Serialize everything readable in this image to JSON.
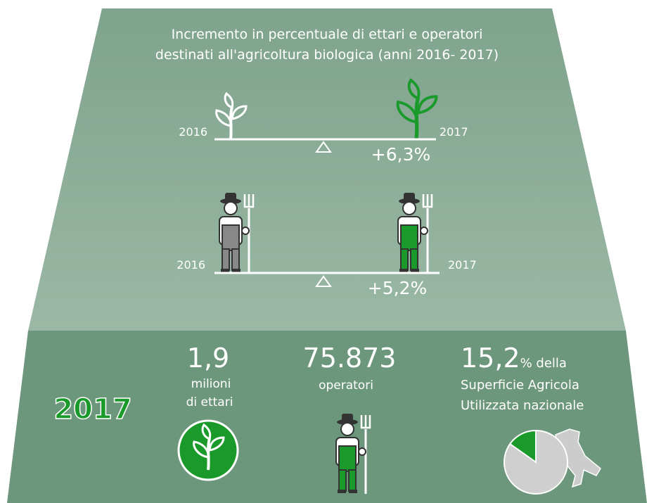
{
  "title": {
    "lines": [
      "Incremento in percentuale di ettari e operatori",
      "destinati all'agricoltura biologica (anni 2016- 2017)"
    ]
  },
  "ettari": {
    "from": "2016",
    "to": "2017",
    "change": "+6,3%"
  },
  "operatori": {
    "from": "2016",
    "to": "2017",
    "change": "+5,2%"
  },
  "summary": {
    "year": "2017",
    "hectares": {
      "value": "1,9",
      "lines": [
        "milioni",
        "di ettari"
      ]
    },
    "operators": {
      "value": "75.873",
      "lines": [
        "operatori"
      ]
    },
    "surface": {
      "value": "15,2",
      "unit": "% della",
      "lines": [
        "Superficie Agricola",
        "Utilizzata nazionale"
      ]
    },
    "pie": {
      "value": 15.2,
      "color": "#1a9a2a"
    }
  }
}
